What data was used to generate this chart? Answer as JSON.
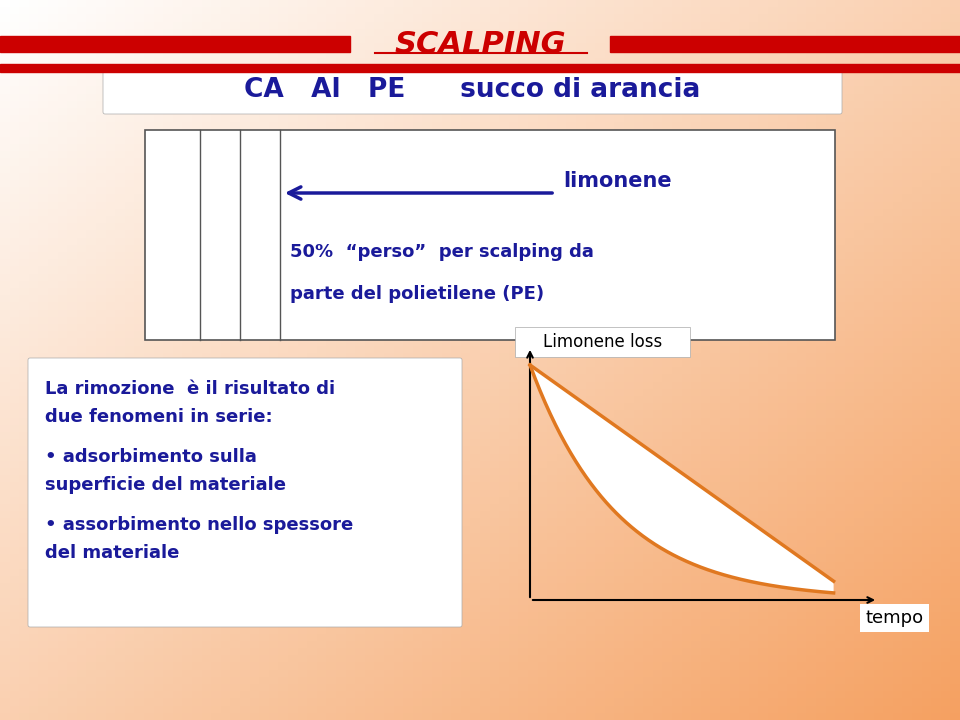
{
  "bg_color_tl": "#ffffff",
  "bg_color_br": "#f5a060",
  "title_text": "SCALPING",
  "title_color": "#cc0000",
  "title_bar_color": "#cc0000",
  "header_text": "CA   Al   PE      succo di arancia",
  "header_color": "#1a1a9a",
  "header_bg": "#ffffff",
  "box_bg": "#ffffff",
  "box_border": "#555555",
  "limonene_label": "limonene",
  "arrow_color": "#1a1a9a",
  "text1_line1": "50%  “perso”  per scalping da",
  "text1_line2": "parte del polietilene (PE)",
  "text1_color": "#1a1a9a",
  "left_text_line1": "La rimozione  è il risultato di",
  "left_text_line2": "due fenomeni in serie:",
  "left_text_line3": "• adsorbimento sulla",
  "left_text_line4": "superficie del materiale",
  "left_text_line5": "• assorbimento nello spessore",
  "left_text_line6": "del materiale",
  "left_text_color": "#1a1a9a",
  "left_box_bg": "#ffffff",
  "graph_label": "Limonene loss",
  "graph_label_color": "#000000",
  "graph_label_box_bg": "#ffffff",
  "graph_axis_color": "#000000",
  "curve_color": "#e07820",
  "fill_color": "#ffffff",
  "tempo_label": "tempo",
  "tempo_color": "#000000",
  "tempo_box_bg": "#ffffff"
}
